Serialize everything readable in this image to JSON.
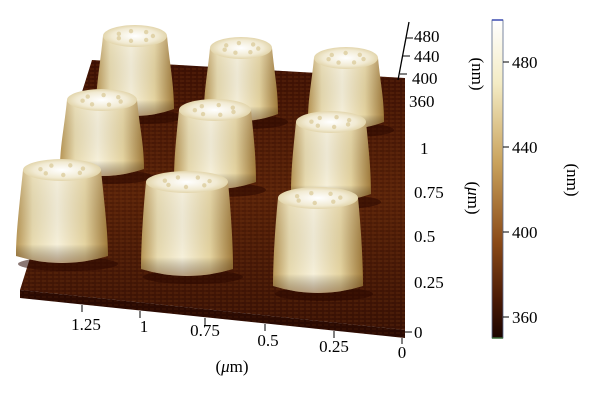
{
  "z_axis": {
    "ticks": [
      "480",
      "440",
      "400",
      "360"
    ],
    "unit": "(nm)"
  },
  "y_axis": {
    "ticks": [
      "1",
      "0.75",
      "0.5",
      "0.25",
      "0"
    ],
    "unit_prefix": "(",
    "unit_mu": "μ",
    "unit_rest": "m)"
  },
  "x_axis": {
    "ticks": [
      "1.25",
      "1",
      "0.75",
      "0.5",
      "0.25",
      "0"
    ],
    "unit_prefix": "(",
    "unit_mu": "μ",
    "unit_rest": "m)"
  },
  "colorbar": {
    "ticks": [
      "480",
      "440",
      "400",
      "360"
    ],
    "unit": "(nm)",
    "colors": [
      "#ffffff",
      "#f3ebc4",
      "#c9a25c",
      "#8a4a18",
      "#4a1a06",
      "#1a0400"
    ]
  },
  "pillar_colors": {
    "top": "#f4eedb",
    "mid": "#e7d9aa",
    "shade": "#a7803e",
    "base": "#6b3a12"
  }
}
